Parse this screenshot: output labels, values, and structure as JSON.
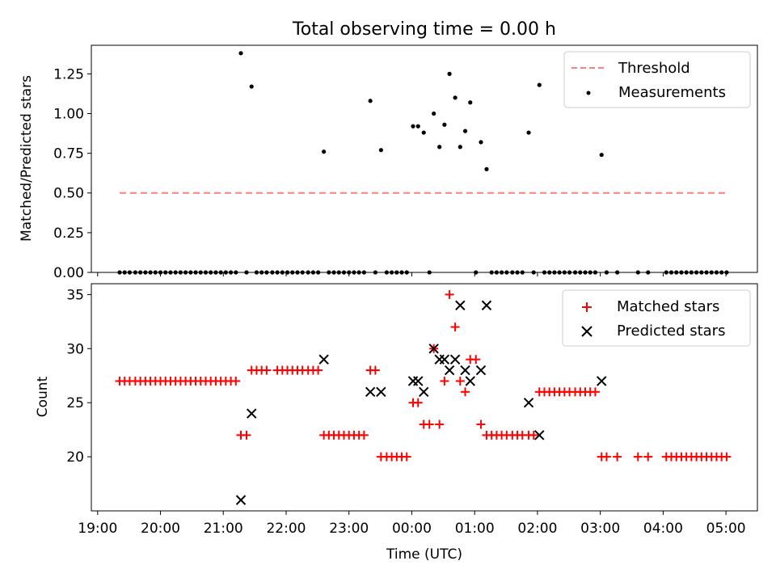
{
  "chart_data": [
    {
      "type": "scatter",
      "title": "Total observing time = 0.00 h",
      "xlabel": "",
      "ylabel": "Matched/Predicted stars",
      "x_unit": "hours since 19:00 UTC",
      "xlim": [
        18.9,
        29.5
      ],
      "ylim": [
        0,
        1.43
      ],
      "yticks": [
        0.0,
        0.25,
        0.5,
        0.75,
        1.0,
        1.25
      ],
      "ytick_labels": [
        "0.00",
        "0.25",
        "0.50",
        "0.75",
        "1.00",
        "1.25"
      ],
      "legend_position": "top-right",
      "series": [
        {
          "name": "Threshold",
          "kind": "dashed-line",
          "color": "#ff7f7f",
          "x": [
            19.35,
            29.05
          ],
          "y": [
            0.5,
            0.5
          ]
        },
        {
          "name": "Measurements",
          "kind": "dots",
          "color": "#000000",
          "points": [
            [
              19.35,
              0
            ],
            [
              19.43,
              0
            ],
            [
              19.51,
              0
            ],
            [
              19.6,
              0
            ],
            [
              19.68,
              0
            ],
            [
              19.76,
              0
            ],
            [
              19.84,
              0
            ],
            [
              19.92,
              0
            ],
            [
              20.0,
              0
            ],
            [
              20.08,
              0
            ],
            [
              20.16,
              0
            ],
            [
              20.24,
              0
            ],
            [
              20.32,
              0
            ],
            [
              20.4,
              0
            ],
            [
              20.48,
              0
            ],
            [
              20.56,
              0
            ],
            [
              20.64,
              0
            ],
            [
              20.72,
              0
            ],
            [
              20.8,
              0
            ],
            [
              20.88,
              0
            ],
            [
              20.96,
              0
            ],
            [
              21.04,
              0
            ],
            [
              21.12,
              0
            ],
            [
              21.2,
              0
            ],
            [
              21.28,
              1.38
            ],
            [
              21.37,
              0
            ],
            [
              21.45,
              1.17
            ],
            [
              21.53,
              0
            ],
            [
              21.61,
              0
            ],
            [
              21.69,
              0
            ],
            [
              21.78,
              0
            ],
            [
              21.86,
              0
            ],
            [
              21.94,
              0
            ],
            [
              22.02,
              0
            ],
            [
              22.1,
              0
            ],
            [
              22.18,
              0
            ],
            [
              22.26,
              0
            ],
            [
              22.35,
              0
            ],
            [
              22.43,
              0
            ],
            [
              22.51,
              0
            ],
            [
              22.6,
              0.76
            ],
            [
              22.68,
              0
            ],
            [
              22.76,
              0
            ],
            [
              22.84,
              0
            ],
            [
              22.92,
              0
            ],
            [
              23.0,
              0
            ],
            [
              23.08,
              0
            ],
            [
              23.16,
              0
            ],
            [
              23.24,
              0
            ],
            [
              23.34,
              1.08
            ],
            [
              23.42,
              0
            ],
            [
              23.51,
              0.77
            ],
            [
              23.6,
              0
            ],
            [
              23.68,
              0
            ],
            [
              23.76,
              0
            ],
            [
              23.84,
              0
            ],
            [
              23.92,
              0
            ],
            [
              24.02,
              0.92
            ],
            [
              24.1,
              0.92
            ],
            [
              24.19,
              0.88
            ],
            [
              24.28,
              0
            ],
            [
              24.35,
              1.0
            ],
            [
              24.44,
              0.79
            ],
            [
              24.52,
              0.93
            ],
            [
              24.6,
              1.25
            ],
            [
              24.69,
              1.1
            ],
            [
              24.77,
              0.79
            ],
            [
              24.85,
              0.89
            ],
            [
              24.93,
              1.07
            ],
            [
              25.02,
              0
            ],
            [
              25.1,
              0.82
            ],
            [
              25.19,
              0.65
            ],
            [
              25.27,
              0
            ],
            [
              25.35,
              0
            ],
            [
              25.43,
              0
            ],
            [
              25.51,
              0
            ],
            [
              25.6,
              0
            ],
            [
              25.68,
              0
            ],
            [
              25.76,
              0
            ],
            [
              25.86,
              0.88
            ],
            [
              25.94,
              0
            ],
            [
              26.03,
              1.18
            ],
            [
              26.11,
              0
            ],
            [
              26.19,
              0
            ],
            [
              26.27,
              0
            ],
            [
              26.35,
              0
            ],
            [
              26.43,
              0
            ],
            [
              26.51,
              0
            ],
            [
              26.6,
              0
            ],
            [
              26.68,
              0
            ],
            [
              26.76,
              0
            ],
            [
              26.84,
              0
            ],
            [
              26.92,
              0
            ],
            [
              27.02,
              0.74
            ],
            [
              27.1,
              0
            ],
            [
              27.27,
              0
            ],
            [
              27.6,
              0
            ],
            [
              27.76,
              0
            ],
            [
              28.05,
              0
            ],
            [
              28.13,
              0
            ],
            [
              28.21,
              0
            ],
            [
              28.29,
              0
            ],
            [
              28.37,
              0
            ],
            [
              28.45,
              0
            ],
            [
              28.53,
              0
            ],
            [
              28.61,
              0
            ],
            [
              28.69,
              0
            ],
            [
              28.77,
              0
            ],
            [
              28.85,
              0
            ],
            [
              28.93,
              0
            ],
            [
              29.01,
              0
            ]
          ]
        }
      ]
    },
    {
      "type": "scatter",
      "title": "",
      "xlabel": "Time (UTC)",
      "ylabel": "Count",
      "x_unit": "hours since 19:00 UTC",
      "xlim": [
        18.9,
        29.5
      ],
      "ylim": [
        15,
        36.0
      ],
      "yticks": [
        20,
        25,
        30,
        35
      ],
      "ytick_labels": [
        "20",
        "25",
        "30",
        "35"
      ],
      "xticks": [
        19,
        20,
        21,
        22,
        23,
        24,
        25,
        26,
        27,
        28,
        29
      ],
      "xtick_labels": [
        "19:00",
        "20:00",
        "21:00",
        "22:00",
        "23:00",
        "00:00",
        "01:00",
        "02:00",
        "03:00",
        "04:00",
        "05:00"
      ],
      "legend_position": "top-right",
      "series": [
        {
          "name": "Matched stars",
          "kind": "plus",
          "color": "#ff0000",
          "points": [
            [
              19.35,
              27
            ],
            [
              19.43,
              27
            ],
            [
              19.51,
              27
            ],
            [
              19.6,
              27
            ],
            [
              19.68,
              27
            ],
            [
              19.76,
              27
            ],
            [
              19.84,
              27
            ],
            [
              19.92,
              27
            ],
            [
              20.0,
              27
            ],
            [
              20.08,
              27
            ],
            [
              20.16,
              27
            ],
            [
              20.24,
              27
            ],
            [
              20.32,
              27
            ],
            [
              20.4,
              27
            ],
            [
              20.48,
              27
            ],
            [
              20.56,
              27
            ],
            [
              20.64,
              27
            ],
            [
              20.72,
              27
            ],
            [
              20.8,
              27
            ],
            [
              20.88,
              27
            ],
            [
              20.96,
              27
            ],
            [
              21.04,
              27
            ],
            [
              21.12,
              27
            ],
            [
              21.2,
              27
            ],
            [
              21.28,
              22
            ],
            [
              21.37,
              22
            ],
            [
              21.45,
              28
            ],
            [
              21.53,
              28
            ],
            [
              21.61,
              28
            ],
            [
              21.69,
              28
            ],
            [
              21.86,
              28
            ],
            [
              21.94,
              28
            ],
            [
              22.02,
              28
            ],
            [
              22.1,
              28
            ],
            [
              22.18,
              28
            ],
            [
              22.26,
              28
            ],
            [
              22.35,
              28
            ],
            [
              22.43,
              28
            ],
            [
              22.51,
              28
            ],
            [
              22.6,
              22
            ],
            [
              22.68,
              22
            ],
            [
              22.76,
              22
            ],
            [
              22.84,
              22
            ],
            [
              22.92,
              22
            ],
            [
              23.0,
              22
            ],
            [
              23.08,
              22
            ],
            [
              23.16,
              22
            ],
            [
              23.24,
              22
            ],
            [
              23.34,
              28
            ],
            [
              23.42,
              28
            ],
            [
              23.51,
              20
            ],
            [
              23.6,
              20
            ],
            [
              23.68,
              20
            ],
            [
              23.76,
              20
            ],
            [
              23.84,
              20
            ],
            [
              23.92,
              20
            ],
            [
              24.02,
              25
            ],
            [
              24.1,
              25
            ],
            [
              24.19,
              23
            ],
            [
              24.28,
              23
            ],
            [
              24.35,
              30
            ],
            [
              24.44,
              23
            ],
            [
              24.52,
              27
            ],
            [
              24.6,
              35
            ],
            [
              24.69,
              32
            ],
            [
              24.77,
              27
            ],
            [
              24.85,
              26
            ],
            [
              24.93,
              29
            ],
            [
              25.02,
              29
            ],
            [
              25.1,
              23
            ],
            [
              25.19,
              22
            ],
            [
              25.27,
              22
            ],
            [
              25.35,
              22
            ],
            [
              25.43,
              22
            ],
            [
              25.51,
              22
            ],
            [
              25.6,
              22
            ],
            [
              25.68,
              22
            ],
            [
              25.76,
              22
            ],
            [
              25.86,
              22
            ],
            [
              25.94,
              22
            ],
            [
              26.03,
              26
            ],
            [
              26.11,
              26
            ],
            [
              26.19,
              26
            ],
            [
              26.27,
              26
            ],
            [
              26.35,
              26
            ],
            [
              26.43,
              26
            ],
            [
              26.51,
              26
            ],
            [
              26.6,
              26
            ],
            [
              26.68,
              26
            ],
            [
              26.76,
              26
            ],
            [
              26.84,
              26
            ],
            [
              26.92,
              26
            ],
            [
              27.02,
              20
            ],
            [
              27.1,
              20
            ],
            [
              27.27,
              20
            ],
            [
              27.6,
              20
            ],
            [
              27.76,
              20
            ],
            [
              28.05,
              20
            ],
            [
              28.13,
              20
            ],
            [
              28.21,
              20
            ],
            [
              28.29,
              20
            ],
            [
              28.37,
              20
            ],
            [
              28.45,
              20
            ],
            [
              28.53,
              20
            ],
            [
              28.61,
              20
            ],
            [
              28.69,
              20
            ],
            [
              28.77,
              20
            ],
            [
              28.85,
              20
            ],
            [
              28.93,
              20
            ],
            [
              29.01,
              20
            ]
          ]
        },
        {
          "name": "Predicted stars",
          "kind": "x",
          "color": "#000000",
          "points": [
            [
              21.28,
              16
            ],
            [
              21.45,
              24
            ],
            [
              22.6,
              29
            ],
            [
              23.34,
              26
            ],
            [
              23.51,
              26
            ],
            [
              24.02,
              27
            ],
            [
              24.1,
              27
            ],
            [
              24.19,
              26
            ],
            [
              24.35,
              30
            ],
            [
              24.44,
              29
            ],
            [
              24.52,
              29
            ],
            [
              24.6,
              28
            ],
            [
              24.69,
              29
            ],
            [
              24.77,
              34
            ],
            [
              24.85,
              28
            ],
            [
              24.93,
              27
            ],
            [
              25.1,
              28
            ],
            [
              25.19,
              34
            ],
            [
              25.86,
              25
            ],
            [
              26.03,
              22
            ],
            [
              27.02,
              27
            ]
          ]
        }
      ]
    }
  ]
}
